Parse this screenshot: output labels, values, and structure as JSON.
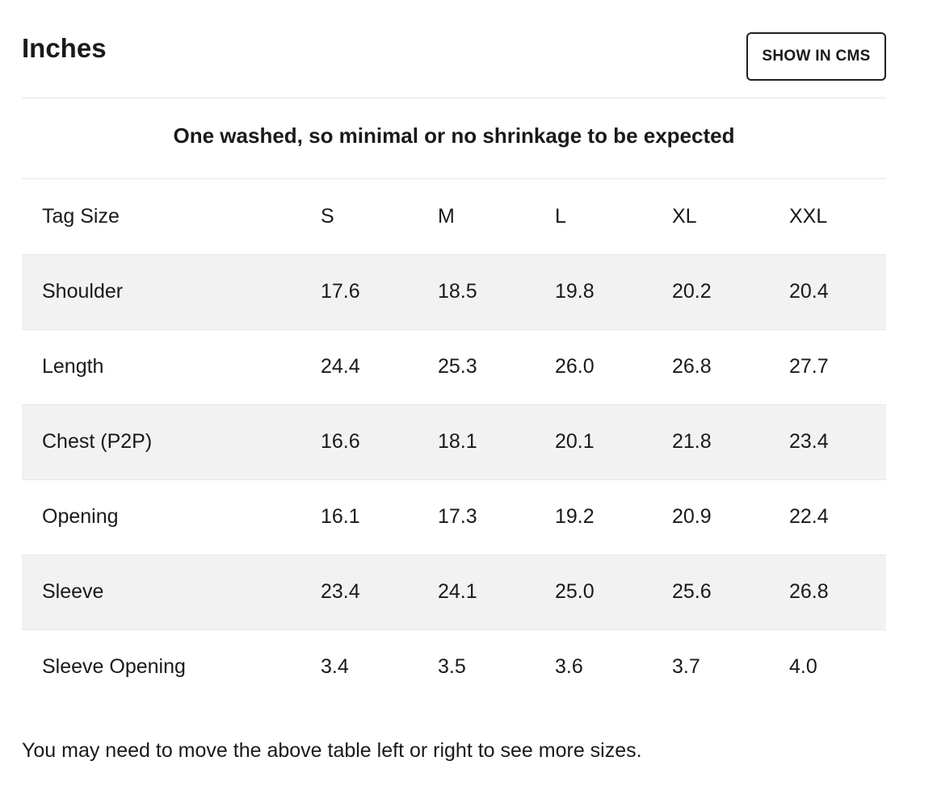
{
  "header": {
    "title": "Inches",
    "cms_button_label": "SHOW IN CMS"
  },
  "note": "One washed, so minimal or no shrinkage to be expected",
  "table": {
    "columns": [
      "Tag Size",
      "S",
      "M",
      "L",
      "XL",
      "XXL"
    ],
    "rows": [
      {
        "label": "Shoulder",
        "values": [
          "17.6",
          "18.5",
          "19.8",
          "20.2",
          "20.4"
        ]
      },
      {
        "label": "Length",
        "values": [
          "24.4",
          "25.3",
          "26.0",
          "26.8",
          "27.7"
        ]
      },
      {
        "label": "Chest (P2P)",
        "values": [
          "16.6",
          "18.1",
          "20.1",
          "21.8",
          "23.4"
        ]
      },
      {
        "label": "Opening",
        "values": [
          "16.1",
          "17.3",
          "19.2",
          "20.9",
          "22.4"
        ]
      },
      {
        "label": "Sleeve",
        "values": [
          "23.4",
          "24.1",
          "25.0",
          "25.6",
          "26.8"
        ]
      },
      {
        "label": "Sleeve Opening",
        "values": [
          "3.4",
          "3.5",
          "3.6",
          "3.7",
          "4.0"
        ]
      }
    ]
  },
  "footnote": "You may need to move the above table left or right to see more sizes."
}
